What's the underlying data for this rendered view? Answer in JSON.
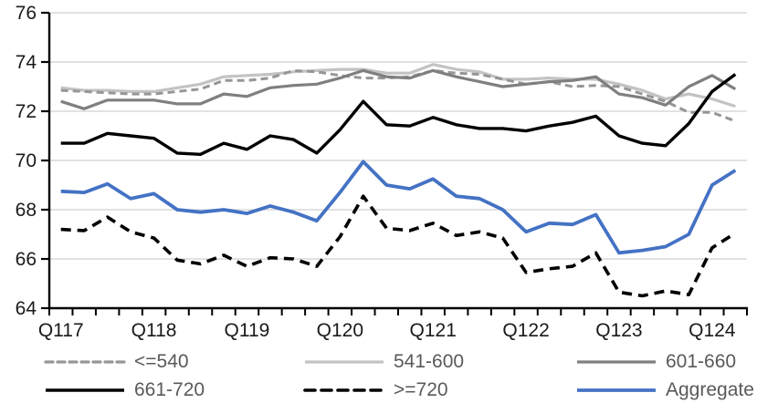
{
  "chart_data": {
    "type": "line",
    "title": "",
    "x_axis": {
      "tick_labels": [
        "Q117",
        "Q118",
        "Q119",
        "Q120",
        "Q121",
        "Q122",
        "Q123",
        "Q124"
      ],
      "quarters_per_label": 4,
      "n_points": 30
    },
    "y_axis": {
      "min": 64,
      "max": 76,
      "tick_step": 2,
      "tick_labels": [
        "64",
        "66",
        "68",
        "70",
        "72",
        "74",
        "76"
      ]
    },
    "grid": true,
    "legend_position": "bottom",
    "series": [
      {
        "name": "<=540",
        "color": "#969696",
        "style": "dashed",
        "width": 3,
        "values": [
          72.85,
          72.8,
          72.75,
          72.7,
          72.7,
          72.8,
          72.9,
          73.25,
          73.25,
          73.35,
          73.65,
          73.6,
          73.45,
          73.35,
          73.35,
          73.4,
          73.65,
          73.55,
          73.5,
          73.3,
          73.1,
          73.2,
          73.0,
          73.05,
          73.0,
          72.7,
          72.4,
          71.95,
          71.95,
          71.6
        ]
      },
      {
        "name": "541-600",
        "color": "#C3C3C3",
        "style": "solid",
        "width": 3.2,
        "values": [
          72.95,
          72.85,
          72.85,
          72.8,
          72.8,
          72.95,
          73.1,
          73.4,
          73.45,
          73.5,
          73.6,
          73.65,
          73.7,
          73.7,
          73.55,
          73.55,
          73.9,
          73.7,
          73.6,
          73.3,
          73.3,
          73.35,
          73.3,
          73.3,
          73.1,
          72.85,
          72.5,
          72.7,
          72.5,
          72.2
        ]
      },
      {
        "name": "601-660",
        "color": "#7F7F7F",
        "style": "solid",
        "width": 3.2,
        "values": [
          72.4,
          72.1,
          72.45,
          72.45,
          72.45,
          72.3,
          72.3,
          72.7,
          72.6,
          72.95,
          73.05,
          73.1,
          73.35,
          73.65,
          73.4,
          73.35,
          73.65,
          73.4,
          73.2,
          73.0,
          73.1,
          73.2,
          73.25,
          73.4,
          72.7,
          72.55,
          72.25,
          73.0,
          73.45,
          72.9
        ]
      },
      {
        "name": "661-720",
        "color": "#000000",
        "style": "solid",
        "width": 3.4,
        "values": [
          70.7,
          70.7,
          71.1,
          71.0,
          70.9,
          70.3,
          70.25,
          70.7,
          70.45,
          71.0,
          70.85,
          70.3,
          71.25,
          72.4,
          71.45,
          71.4,
          71.75,
          71.45,
          71.3,
          71.3,
          71.2,
          71.4,
          71.55,
          71.8,
          71.0,
          70.7,
          70.6,
          71.5,
          72.8,
          73.5
        ]
      },
      {
        "name": ">=720",
        "color": "#000000",
        "style": "dashed",
        "width": 3.6,
        "values": [
          67.2,
          67.15,
          67.7,
          67.1,
          66.85,
          65.95,
          65.8,
          66.15,
          65.7,
          66.05,
          66.0,
          65.7,
          66.9,
          68.55,
          67.25,
          67.15,
          67.45,
          66.95,
          67.1,
          66.85,
          65.45,
          65.6,
          65.7,
          66.25,
          64.65,
          64.5,
          64.7,
          64.55,
          66.45,
          67.05
        ]
      },
      {
        "name": "Aggregate",
        "color": "#4472C4",
        "style": "solid",
        "width": 3.8,
        "values": [
          68.75,
          68.7,
          69.05,
          68.45,
          68.65,
          68.0,
          67.9,
          68.0,
          67.85,
          68.15,
          67.9,
          67.55,
          68.7,
          69.95,
          69.0,
          68.85,
          69.25,
          68.55,
          68.45,
          68.0,
          67.1,
          67.45,
          67.4,
          67.8,
          66.25,
          66.35,
          66.5,
          67.0,
          69.0,
          69.6
        ]
      }
    ]
  },
  "colors": {
    "background": "#FFFFFF",
    "grid": "#D9D9D9",
    "axis": "#000000",
    "axis_label": "#1A1A1A",
    "legend_label": "#595959",
    "accent_blue": "#4472C4"
  }
}
